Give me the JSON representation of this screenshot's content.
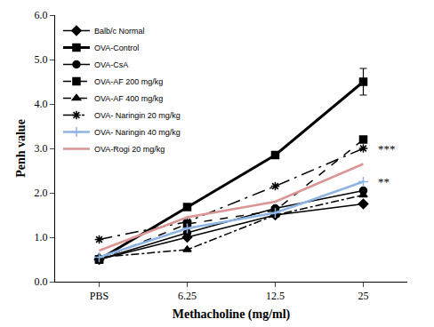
{
  "chart_data": {
    "type": "line",
    "x_label": "Methacholine (mg/ml)",
    "y_label": "Penh value",
    "categories": [
      "PBS",
      "6.25",
      "12.5",
      "25"
    ],
    "ylim": [
      0,
      6
    ],
    "yticks": [
      {
        "value": 0,
        "label": "0.0"
      },
      {
        "value": 1,
        "label": "1.0"
      },
      {
        "value": 2,
        "label": "2.0"
      },
      {
        "value": 3,
        "label": "3.0"
      },
      {
        "value": 4,
        "label": "4.0"
      },
      {
        "value": 5,
        "label": "5.0"
      },
      {
        "value": 6,
        "label": "6.0"
      }
    ],
    "grid": false,
    "legend": "upper left",
    "series": [
      {
        "name": "Balb/c Normal",
        "color": "#000000",
        "marker": "diamond",
        "line_style": "solid",
        "values": [
          0.5,
          1.0,
          1.5,
          1.75
        ]
      },
      {
        "name": "OVA-Control",
        "color": "#000000",
        "marker": "square",
        "line_style": "thick",
        "values": [
          0.5,
          1.68,
          2.85,
          4.5
        ],
        "errors": [
          null,
          null,
          null,
          0.3
        ]
      },
      {
        "name": "OVA-CsA",
        "color": "#000000",
        "marker": "circle",
        "line_style": "solid",
        "values": [
          0.5,
          1.1,
          1.65,
          2.05
        ]
      },
      {
        "name": "OVA-AF 200 mg/kg",
        "color": "#000000",
        "marker": "square",
        "line_style": "dash",
        "values": [
          0.5,
          1.3,
          1.6,
          3.2
        ]
      },
      {
        "name": "OVA-AF 400 mg/kg",
        "color": "#000000",
        "marker": "triangle",
        "line_style": "dashdot",
        "values": [
          0.55,
          0.72,
          1.5,
          1.95
        ]
      },
      {
        "name": "OVA- Naringin 20 mg/kg",
        "color": "#000000",
        "marker": "asterisk",
        "line_style": "longdashdot",
        "values": [
          0.95,
          1.35,
          2.15,
          3.0
        ]
      },
      {
        "name": "OVA- Naringin 40 mg/kg",
        "color": "#8eb4e3",
        "marker": "cross",
        "line_style": "solid",
        "values": [
          0.55,
          1.2,
          1.55,
          2.25
        ]
      },
      {
        "name": "OVA-Rogi 20 mg/kg",
        "color": "#d99694",
        "marker": "none",
        "line_style": "solid",
        "values": [
          0.7,
          1.45,
          1.8,
          2.65
        ]
      }
    ],
    "annotations": [
      {
        "text": "***",
        "x": "25",
        "y": 3.0
      },
      {
        "text": "**",
        "x": "25",
        "y": 2.25
      }
    ]
  }
}
